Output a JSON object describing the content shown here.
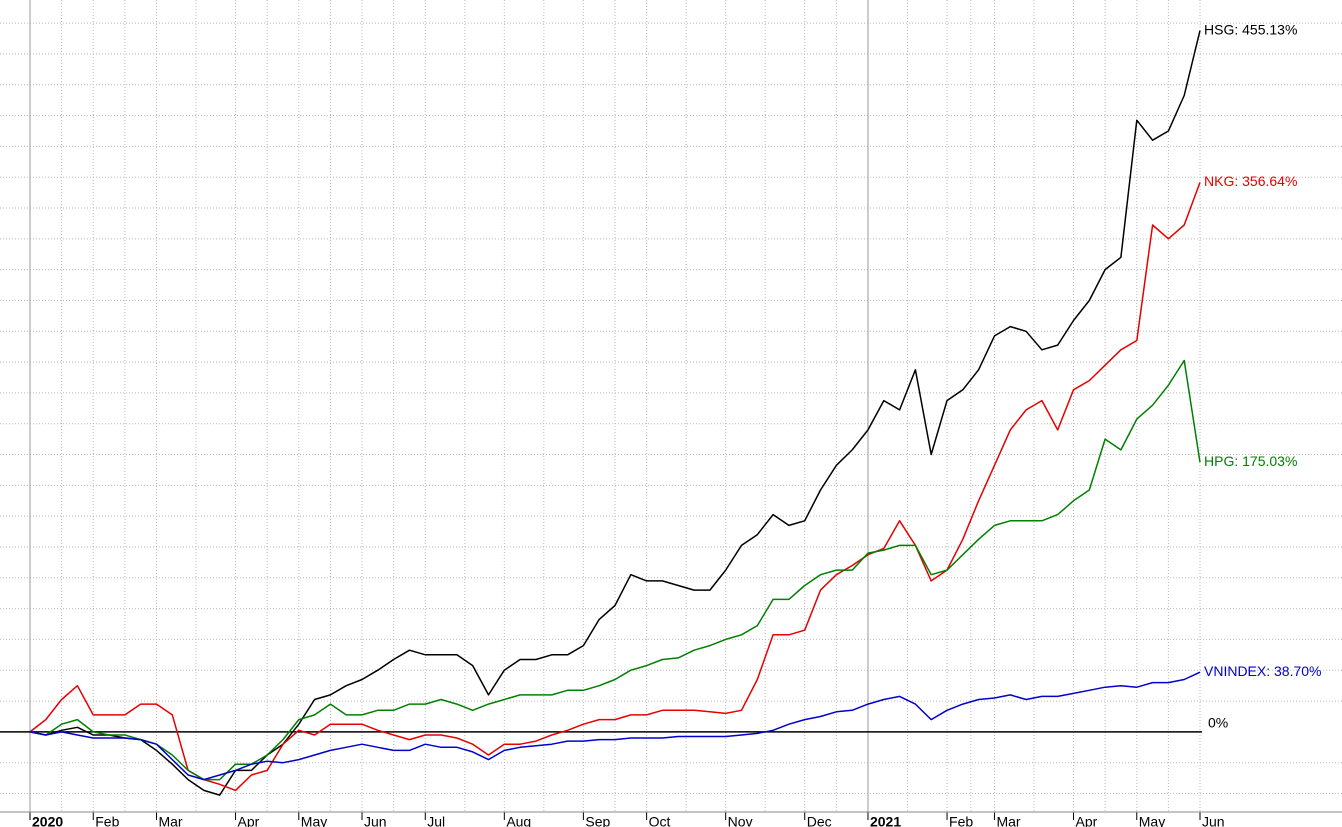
{
  "chart_data": {
    "type": "line",
    "categories": [
      "2020",
      null,
      null,
      null,
      "Feb",
      null,
      null,
      null,
      "Mar",
      null,
      null,
      null,
      null,
      "Apr",
      null,
      null,
      null,
      "May",
      null,
      null,
      null,
      "Jun",
      null,
      null,
      null,
      "Jul",
      null,
      null,
      null,
      null,
      "Aug",
      null,
      null,
      null,
      null,
      "Sep",
      null,
      null,
      null,
      "Oct",
      null,
      null,
      null,
      null,
      "Nov",
      null,
      null,
      null,
      null,
      "Dec",
      null,
      null,
      null,
      "2021",
      null,
      null,
      null,
      null,
      "Feb",
      null,
      null,
      "Mar",
      null,
      null,
      null,
      null,
      "Apr",
      null,
      null,
      null,
      "May",
      null,
      null,
      null,
      "Jun"
    ],
    "series": [
      {
        "color": "#000000",
        "values": [
          0,
          -2,
          1,
          3,
          -2,
          -2,
          -4,
          -5,
          -12,
          -21,
          -31,
          -38,
          -41,
          -25,
          -25,
          -15,
          -8,
          5,
          21,
          24,
          30,
          34,
          40,
          47,
          53,
          50,
          50,
          50,
          43,
          24,
          40,
          47,
          47,
          50,
          50,
          56,
          73,
          82,
          102,
          98,
          98,
          95,
          92,
          92,
          105,
          121,
          128,
          141,
          134,
          137,
          157,
          173,
          183,
          196,
          215,
          209,
          235,
          180,
          215,
          222,
          235,
          257,
          263,
          260,
          248,
          251,
          267,
          280,
          300,
          308,
          397,
          384,
          390,
          413,
          455.13
        ],
        "value_labels": [
          null,
          null,
          null,
          null,
          null,
          null,
          null,
          null,
          null,
          null,
          null,
          null,
          null,
          null,
          null,
          null,
          null,
          null,
          null,
          null,
          null,
          null,
          null,
          null,
          null,
          null,
          null,
          null,
          null,
          null,
          null,
          null,
          null,
          null,
          null,
          null,
          null,
          null,
          null,
          null,
          null,
          null,
          null,
          null,
          null,
          null,
          null,
          null,
          null,
          null,
          null,
          null,
          null,
          null,
          null,
          null,
          null,
          null,
          null,
          null,
          null,
          null,
          null,
          null,
          null,
          null,
          null,
          null,
          null,
          null,
          null,
          null,
          null,
          null,
          "HSG: 455.13%"
        ]
      },
      {
        "color": "#e60000",
        "values": [
          0,
          8,
          21,
          30,
          11,
          11,
          11,
          18,
          18,
          11,
          -25,
          -31,
          -34,
          -38,
          -28,
          -25,
          -8,
          1,
          -2,
          5,
          5,
          5,
          1,
          -2,
          -5,
          -2,
          -2,
          -4,
          -8,
          -15,
          -8,
          -8,
          -6,
          -2,
          1,
          5,
          8,
          8,
          11,
          11,
          14,
          14,
          14,
          13,
          12,
          14,
          34,
          63,
          63,
          66,
          92,
          102,
          108,
          115,
          119,
          137,
          121,
          98,
          105,
          125,
          150,
          173,
          196,
          209,
          215,
          196,
          222,
          228,
          238,
          248,
          254,
          329,
          320,
          329,
          356.64
        ],
        "value_labels": [
          null,
          null,
          null,
          null,
          null,
          null,
          null,
          null,
          null,
          null,
          null,
          null,
          null,
          null,
          null,
          null,
          null,
          null,
          null,
          null,
          null,
          null,
          null,
          null,
          null,
          null,
          null,
          null,
          null,
          null,
          null,
          null,
          null,
          null,
          null,
          null,
          null,
          null,
          null,
          null,
          null,
          null,
          null,
          null,
          null,
          null,
          null,
          null,
          null,
          null,
          null,
          null,
          null,
          null,
          null,
          null,
          null,
          null,
          null,
          null,
          null,
          null,
          null,
          null,
          null,
          null,
          null,
          null,
          null,
          null,
          null,
          null,
          null,
          null,
          "NKG: 356.64%"
        ]
      },
      {
        "color": "#008000",
        "values": [
          0,
          -2,
          5,
          8,
          0,
          -2,
          -2,
          -5,
          -8,
          -15,
          -25,
          -31,
          -31,
          -21,
          -21,
          -15,
          -5,
          8,
          11,
          18,
          11,
          11,
          14,
          14,
          18,
          18,
          21,
          18,
          14,
          18,
          21,
          24,
          24,
          24,
          27,
          27,
          30,
          34,
          40,
          43,
          47,
          48,
          53,
          56,
          60,
          63,
          69,
          86,
          86,
          95,
          102,
          105,
          105,
          116,
          118,
          121,
          121,
          102,
          105,
          115,
          125,
          134,
          137,
          137,
          137,
          141,
          150,
          157,
          190,
          183,
          203,
          212,
          225,
          241,
          175.03
        ],
        "value_labels": [
          null,
          null,
          null,
          null,
          null,
          null,
          null,
          null,
          null,
          null,
          null,
          null,
          null,
          null,
          null,
          null,
          null,
          null,
          null,
          null,
          null,
          null,
          null,
          null,
          null,
          null,
          null,
          null,
          null,
          null,
          null,
          null,
          null,
          null,
          null,
          null,
          null,
          null,
          null,
          null,
          null,
          null,
          null,
          null,
          null,
          null,
          null,
          null,
          null,
          null,
          null,
          null,
          null,
          null,
          null,
          null,
          null,
          null,
          null,
          null,
          null,
          null,
          null,
          null,
          null,
          null,
          null,
          null,
          null,
          null,
          null,
          null,
          null,
          null,
          "HPG: 175.03%"
        ]
      },
      {
        "color": "#0000cc",
        "values": [
          0,
          -2,
          0,
          -2,
          -4,
          -4,
          -4,
          -5,
          -8,
          -18,
          -28,
          -31,
          -28,
          -25,
          -21,
          -19,
          -20,
          -18,
          -15,
          -12,
          -10,
          -8,
          -10,
          -12,
          -12,
          -8,
          -10,
          -10,
          -13,
          -18,
          -12,
          -10,
          -9,
          -8,
          -6,
          -6,
          -5,
          -5,
          -4,
          -4,
          -4,
          -3,
          -3,
          -3,
          -3,
          -2,
          -1,
          1,
          5,
          8,
          10,
          13,
          14,
          18,
          21,
          23,
          18,
          8,
          14,
          18,
          21,
          22,
          24,
          21,
          23,
          23,
          25,
          27,
          29,
          30,
          29,
          32,
          32,
          34,
          38.7
        ],
        "value_labels": [
          null,
          null,
          null,
          null,
          null,
          null,
          null,
          null,
          null,
          null,
          null,
          null,
          null,
          null,
          null,
          null,
          null,
          null,
          null,
          null,
          null,
          null,
          null,
          null,
          null,
          null,
          null,
          null,
          null,
          null,
          null,
          null,
          null,
          null,
          null,
          null,
          null,
          null,
          null,
          null,
          null,
          null,
          null,
          null,
          null,
          null,
          null,
          null,
          null,
          null,
          null,
          null,
          null,
          null,
          null,
          null,
          null,
          null,
          null,
          null,
          null,
          null,
          null,
          null,
          null,
          null,
          null,
          null,
          null,
          null,
          null,
          null,
          null,
          null,
          "VNINDEX: 38.70%"
        ]
      }
    ],
    "ylim": [
      -52,
      475
    ],
    "yticks": [
      {
        "value": 0,
        "label": "0%"
      }
    ],
    "ygrid": [
      -40,
      -20,
      20,
      40,
      60,
      80,
      100,
      120,
      140,
      160,
      180,
      200,
      220,
      240,
      260,
      280,
      300,
      320,
      340,
      360,
      380,
      400,
      420,
      440,
      460
    ],
    "grid": true
  }
}
